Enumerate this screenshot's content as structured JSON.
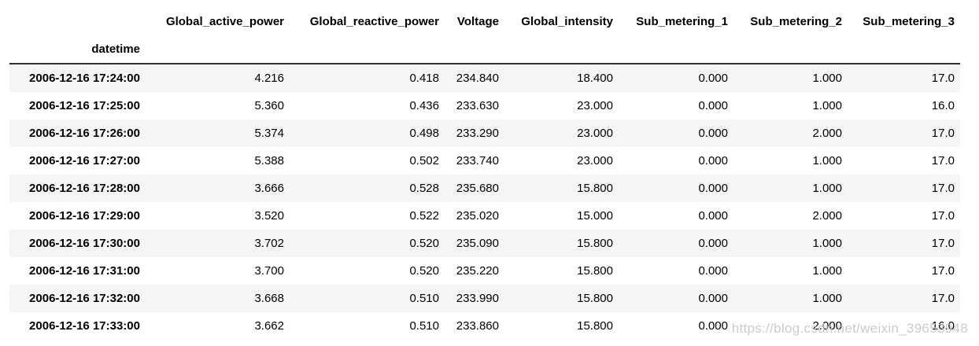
{
  "table": {
    "index_name": "datetime",
    "columns": [
      "Global_active_power",
      "Global_reactive_power",
      "Voltage",
      "Global_intensity",
      "Sub_metering_1",
      "Sub_metering_2",
      "Sub_metering_3"
    ],
    "rows": [
      {
        "index": "2006-12-16 17:24:00",
        "values": [
          "4.216",
          "0.418",
          "234.840",
          "18.400",
          "0.000",
          "1.000",
          "17.0"
        ]
      },
      {
        "index": "2006-12-16 17:25:00",
        "values": [
          "5.360",
          "0.436",
          "233.630",
          "23.000",
          "0.000",
          "1.000",
          "16.0"
        ]
      },
      {
        "index": "2006-12-16 17:26:00",
        "values": [
          "5.374",
          "0.498",
          "233.290",
          "23.000",
          "0.000",
          "2.000",
          "17.0"
        ]
      },
      {
        "index": "2006-12-16 17:27:00",
        "values": [
          "5.388",
          "0.502",
          "233.740",
          "23.000",
          "0.000",
          "1.000",
          "17.0"
        ]
      },
      {
        "index": "2006-12-16 17:28:00",
        "values": [
          "3.666",
          "0.528",
          "235.680",
          "15.800",
          "0.000",
          "1.000",
          "17.0"
        ]
      },
      {
        "index": "2006-12-16 17:29:00",
        "values": [
          "3.520",
          "0.522",
          "235.020",
          "15.000",
          "0.000",
          "2.000",
          "17.0"
        ]
      },
      {
        "index": "2006-12-16 17:30:00",
        "values": [
          "3.702",
          "0.520",
          "235.090",
          "15.800",
          "0.000",
          "1.000",
          "17.0"
        ]
      },
      {
        "index": "2006-12-16 17:31:00",
        "values": [
          "3.700",
          "0.520",
          "235.220",
          "15.800",
          "0.000",
          "1.000",
          "17.0"
        ]
      },
      {
        "index": "2006-12-16 17:32:00",
        "values": [
          "3.668",
          "0.510",
          "233.990",
          "15.800",
          "0.000",
          "1.000",
          "17.0"
        ]
      },
      {
        "index": "2006-12-16 17:33:00",
        "values": [
          "3.662",
          "0.510",
          "233.860",
          "15.800",
          "0.000",
          "2.000",
          "16.0"
        ]
      }
    ],
    "stripe_color": "#f5f5f5",
    "header_border_color": "#2e2e2e"
  },
  "watermark": {
    "text": "https://blog.csdn.net/weixin_39653948"
  }
}
